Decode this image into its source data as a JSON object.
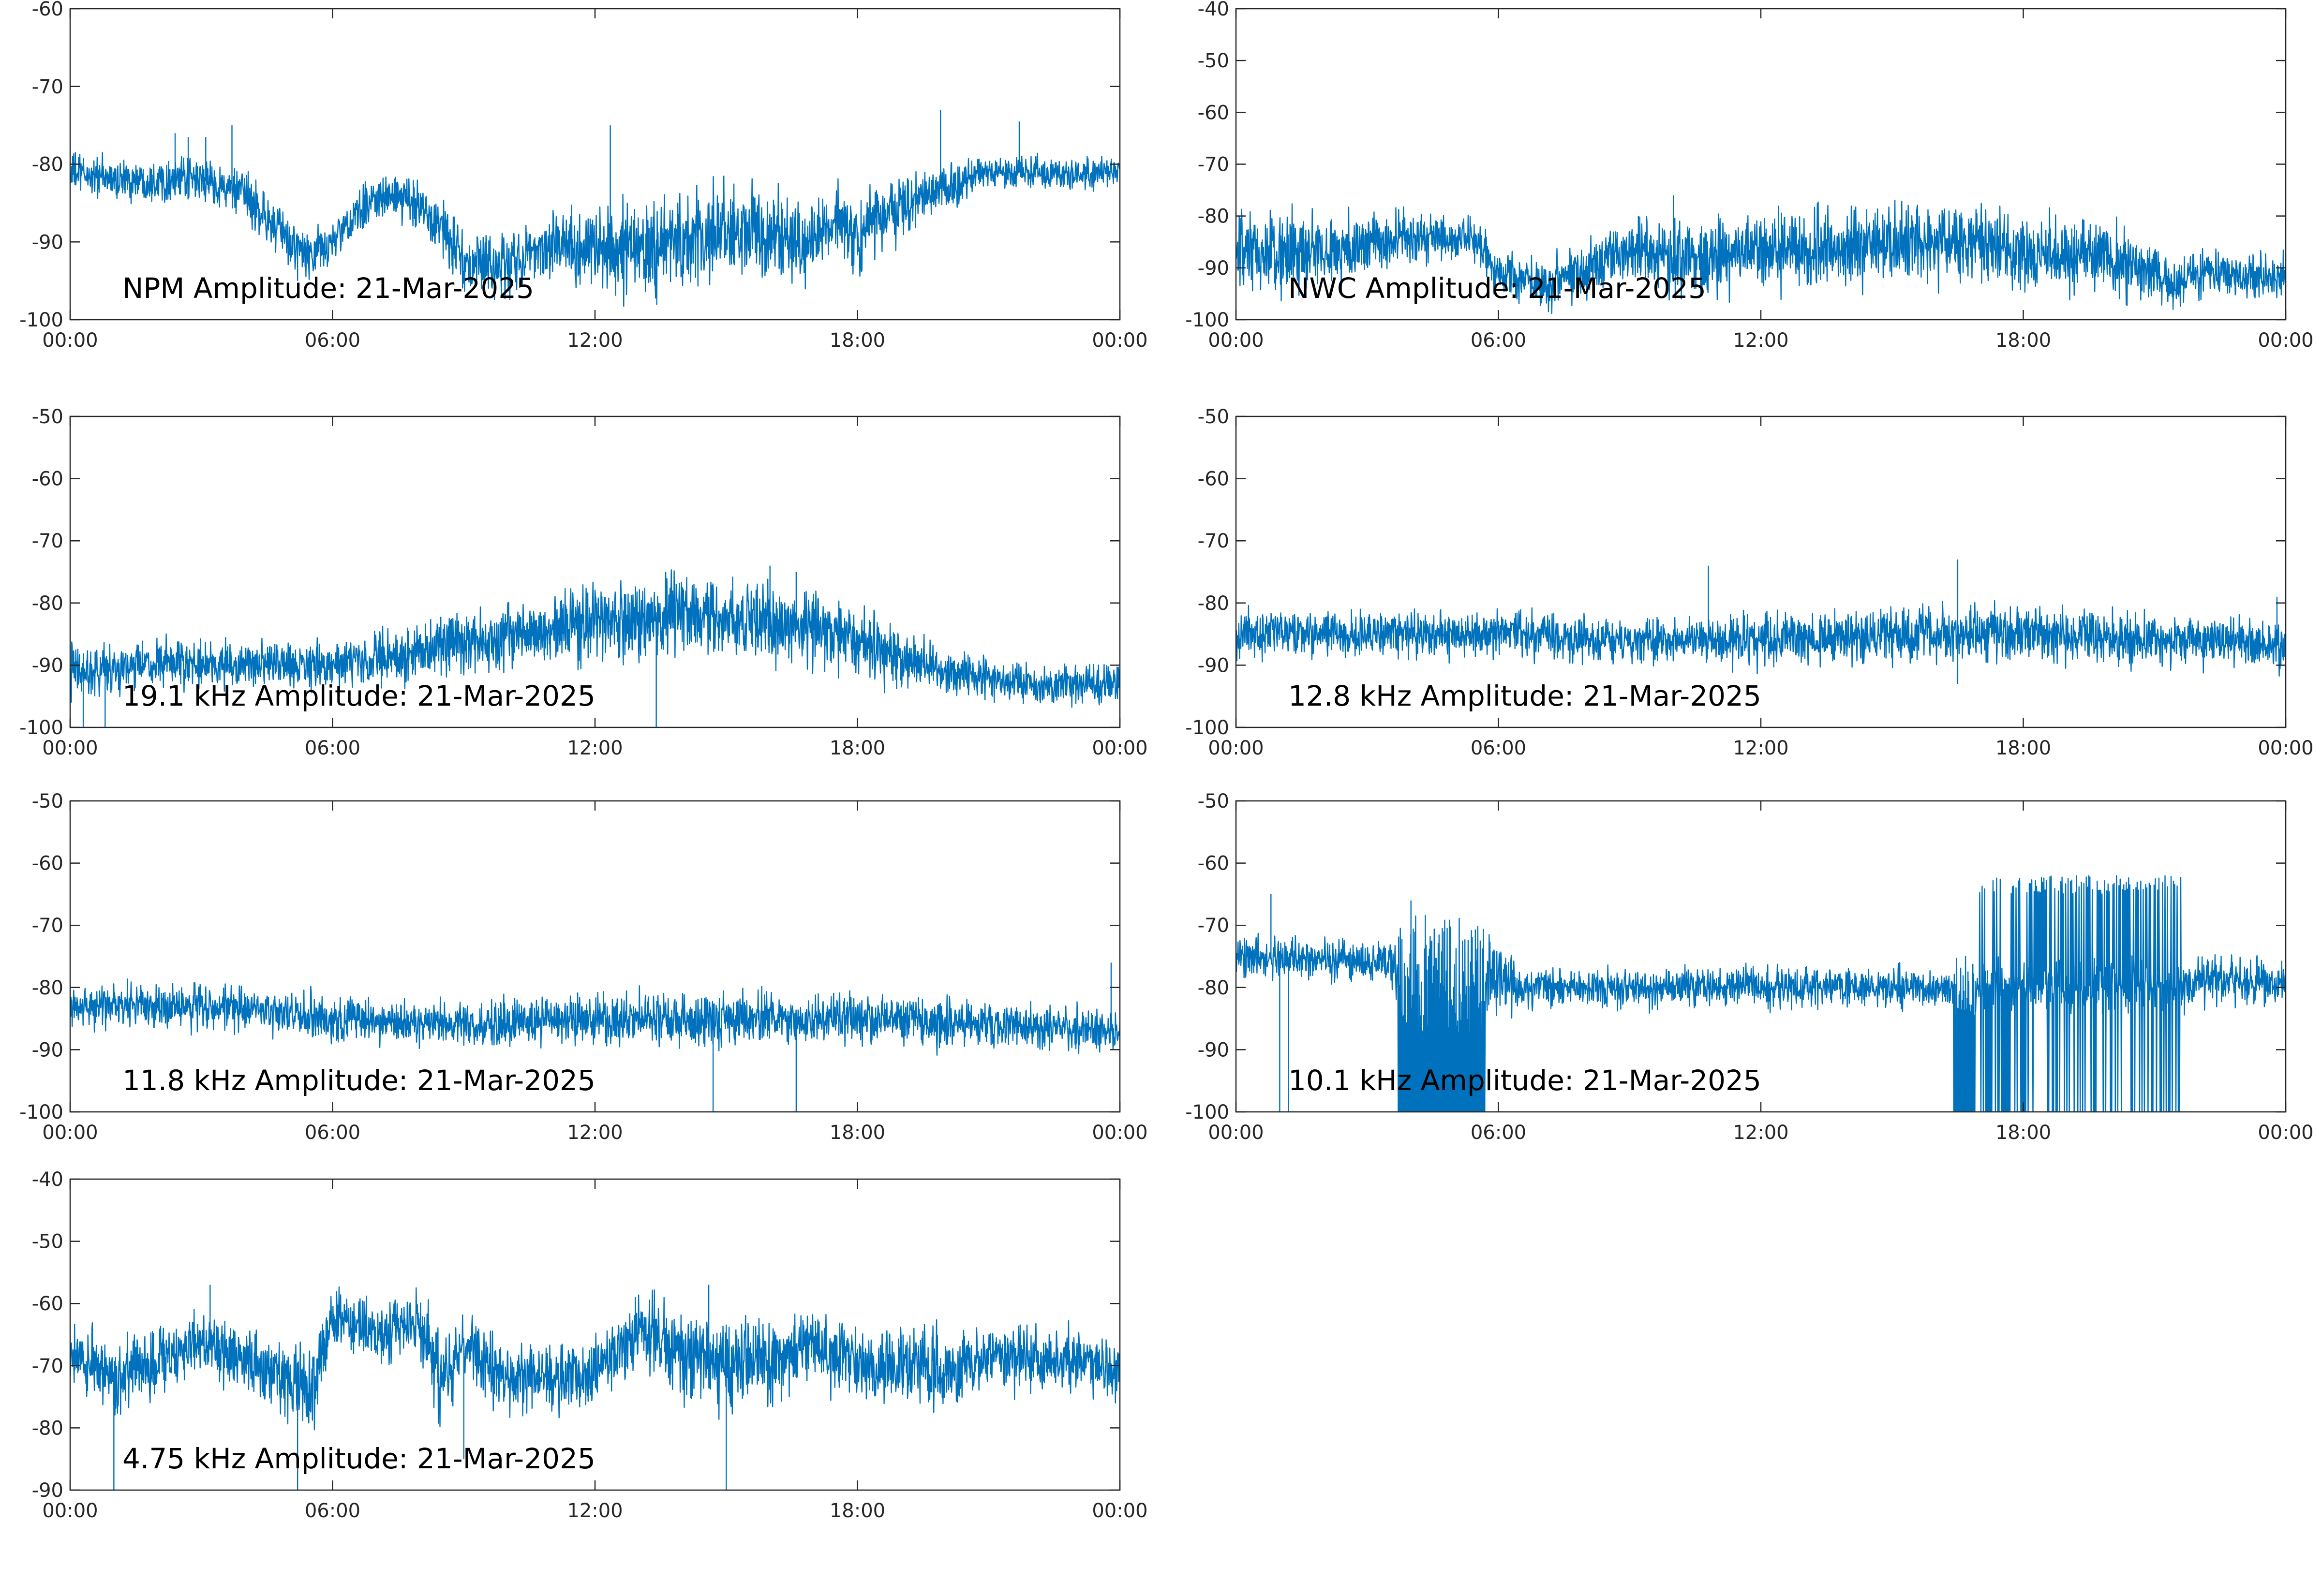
{
  "figure": {
    "background": "#ffffff",
    "line_color": "#0072BD",
    "axis_color": "#262626"
  },
  "chart_data": [
    {
      "type": "line",
      "title": "NPM Amplitude: 21-Mar-2025",
      "xlabel": "",
      "ylabel": "",
      "grid": false,
      "legend": "none",
      "xlim": [
        "00:00",
        "24:00"
      ],
      "x_ticks": [
        "00:00",
        "06:00",
        "12:00",
        "18:00",
        "00:00"
      ],
      "ylim": [
        -100,
        -60
      ],
      "y_ticks": [
        -100,
        -90,
        -80,
        -70,
        -60
      ],
      "series": [
        {
          "x_hours": [
            0,
            1,
            2,
            3,
            4,
            5,
            5.5,
            6,
            7,
            8,
            8.5,
            9,
            10,
            11,
            12,
            13,
            14,
            15,
            16,
            17,
            17.5,
            18,
            19,
            20,
            21,
            22,
            23,
            24
          ],
          "center": [
            -81,
            -82,
            -82,
            -82,
            -84,
            -90,
            -92,
            -90,
            -84,
            -85,
            -88,
            -93,
            -93,
            -90,
            -91,
            -91,
            -90,
            -89,
            -89,
            -90,
            -87,
            -90,
            -85,
            -83,
            -81,
            -81,
            -81,
            -81
          ],
          "spread": [
            2.5,
            2.5,
            2.5,
            2.5,
            3,
            3,
            3,
            3,
            2.5,
            3,
            4,
            4,
            4,
            4,
            5,
            6,
            6,
            6,
            6,
            5,
            4,
            5,
            4,
            3,
            2,
            1.8,
            1.8,
            1.8
          ],
          "spikes": [
            [
              2.4,
              -76
            ],
            [
              2.7,
              -76.5
            ],
            [
              3.1,
              -76.5
            ],
            [
              3.7,
              -75
            ],
            [
              5.2,
              -95
            ],
            [
              12.35,
              -75
            ],
            [
              19.9,
              -73
            ],
            [
              21.7,
              -74.5
            ]
          ]
        }
      ]
    },
    {
      "type": "line",
      "title": "NWC Amplitude: 21-Mar-2025",
      "xlabel": "",
      "ylabel": "",
      "grid": false,
      "legend": "none",
      "xlim": [
        "00:00",
        "24:00"
      ],
      "x_ticks": [
        "00:00",
        "06:00",
        "12:00",
        "18:00",
        "00:00"
      ],
      "ylim": [
        -100,
        -40
      ],
      "y_ticks": [
        -100,
        -90,
        -80,
        -70,
        -60,
        -50,
        -40
      ],
      "series": [
        {
          "x_hours": [
            0,
            2,
            4,
            5.5,
            6,
            7,
            8,
            9,
            10,
            12,
            14,
            16,
            18,
            20,
            21.5,
            22,
            24
          ],
          "center": [
            -88,
            -87,
            -84,
            -85,
            -91,
            -93,
            -90,
            -86,
            -88,
            -87,
            -86,
            -85,
            -87,
            -88,
            -93,
            -91,
            -92
          ],
          "spread": [
            8,
            7,
            5,
            4,
            4,
            5,
            5,
            6,
            7,
            7,
            7,
            7,
            7,
            7,
            5,
            4,
            4
          ],
          "spikes": [
            [
              9.2,
              -80
            ],
            [
              10,
              -76
            ],
            [
              12.4,
              -78
            ]
          ]
        }
      ]
    },
    {
      "type": "line",
      "title": "19.1 kHz Amplitude: 21-Mar-2025",
      "xlabel": "",
      "ylabel": "",
      "grid": false,
      "legend": "none",
      "xlim": [
        "00:00",
        "24:00"
      ],
      "x_ticks": [
        "00:00",
        "06:00",
        "12:00",
        "18:00",
        "00:00"
      ],
      "ylim": [
        -100,
        -50
      ],
      "y_ticks": [
        -100,
        -90,
        -80,
        -70,
        -60,
        -50
      ],
      "series": [
        {
          "x_hours": [
            0,
            2,
            4,
            6,
            8,
            10,
            12,
            14,
            16,
            18,
            19,
            20,
            22,
            24
          ],
          "center": [
            -91,
            -90,
            -90,
            -90,
            -88,
            -85,
            -83,
            -82,
            -83,
            -86,
            -89,
            -91,
            -93,
            -93
          ],
          "spread": [
            4,
            3.5,
            3.5,
            3.5,
            4.5,
            5,
            6,
            6,
            6,
            5,
            4.5,
            3.5,
            3,
            3
          ],
          "spikes": [
            [
              0.3,
              -100
            ],
            [
              0.8,
              -100
            ],
            [
              13.4,
              -100
            ],
            [
              16,
              -74
            ],
            [
              16.6,
              -75
            ]
          ]
        }
      ]
    },
    {
      "type": "line",
      "title": "12.8 kHz Amplitude: 21-Mar-2025",
      "xlabel": "",
      "ylabel": "",
      "grid": false,
      "legend": "none",
      "xlim": [
        "00:00",
        "24:00"
      ],
      "x_ticks": [
        "00:00",
        "06:00",
        "12:00",
        "18:00",
        "00:00"
      ],
      "ylim": [
        -100,
        -50
      ],
      "y_ticks": [
        -100,
        -90,
        -80,
        -70,
        -60,
        -50
      ],
      "series": [
        {
          "x_hours": [
            0,
            3,
            6,
            9,
            12,
            15,
            18,
            21,
            24
          ],
          "center": [
            -85,
            -85,
            -85,
            -86,
            -86,
            -85,
            -85,
            -86,
            -87
          ],
          "spread": [
            3.5,
            3.5,
            3.5,
            3.5,
            4,
            4,
            4,
            4,
            4
          ],
          "spikes": [
            [
              16.5,
              -73
            ],
            [
              16.5,
              -93
            ],
            [
              10.8,
              -74
            ],
            [
              23.8,
              -79
            ]
          ]
        }
      ]
    },
    {
      "type": "line",
      "title": "11.8 kHz Amplitude: 21-Mar-2025",
      "xlabel": "",
      "ylabel": "",
      "grid": false,
      "legend": "none",
      "xlim": [
        "00:00",
        "24:00"
      ],
      "x_ticks": [
        "00:00",
        "06:00",
        "12:00",
        "18:00",
        "00:00"
      ],
      "ylim": [
        -100,
        -50
      ],
      "y_ticks": [
        -100,
        -90,
        -80,
        -70,
        -60,
        -50
      ],
      "series": [
        {
          "x_hours": [
            0,
            3,
            6,
            9,
            12,
            15,
            18,
            21,
            24
          ],
          "center": [
            -83,
            -83,
            -85,
            -86,
            -85,
            -85,
            -85,
            -86,
            -87
          ],
          "spread": [
            3.5,
            3.5,
            3.5,
            3.5,
            4,
            4,
            4,
            3.5,
            3
          ],
          "spikes": [
            [
              14.7,
              -100
            ],
            [
              16.6,
              -100
            ],
            [
              23.8,
              -76
            ]
          ]
        }
      ]
    },
    {
      "type": "line",
      "title": "10.1 kHz Amplitude: 21-Mar-2025",
      "xlabel": "",
      "ylabel": "",
      "grid": false,
      "legend": "none",
      "xlim": [
        "00:00",
        "24:00"
      ],
      "x_ticks": [
        "00:00",
        "06:00",
        "12:00",
        "18:00",
        "00:00"
      ],
      "ylim": [
        -100,
        -50
      ],
      "y_ticks": [
        -100,
        -90,
        -80,
        -70,
        -60,
        -50
      ],
      "series": [
        {
          "x_hours": [
            0,
            3.5,
            4,
            6,
            6.5,
            9,
            12,
            15,
            16.5,
            17,
            21.5,
            22,
            24
          ],
          "center": [
            -75,
            -76,
            -78,
            -78,
            -80,
            -80,
            -80,
            -80,
            -80,
            -80,
            -80,
            -79,
            -79
          ],
          "spread": [
            3,
            3,
            6,
            6,
            3,
            3,
            3,
            3,
            3,
            4,
            4,
            3.5,
            3.5
          ],
          "dense_dropouts": [
            [
              3.7,
              5.7
            ],
            [
              16.4,
              16.9
            ]
          ],
          "spike_bursts": [
            [
              17,
              21.6
            ]
          ],
          "spikes": [
            [
              1,
              -100
            ],
            [
              1.2,
              -100
            ],
            [
              0.8,
              -65
            ],
            [
              4,
              -66
            ]
          ]
        }
      ]
    },
    {
      "type": "line",
      "title": "4.75 kHz Amplitude: 21-Mar-2025",
      "xlabel": "",
      "ylabel": "",
      "grid": false,
      "legend": "none",
      "xlim": [
        "00:00",
        "24:00"
      ],
      "x_ticks": [
        "00:00",
        "06:00",
        "12:00",
        "18:00",
        "00:00"
      ],
      "ylim": [
        -90,
        -40
      ],
      "y_ticks": [
        -90,
        -80,
        -70,
        -60,
        -50,
        -40
      ],
      "series": [
        {
          "x_hours": [
            0,
            1,
            2,
            3,
            4,
            5,
            5.5,
            6,
            7,
            8,
            8.5,
            9,
            10,
            11,
            12,
            13,
            14,
            15,
            16,
            17,
            18,
            19,
            20,
            21,
            22,
            23,
            24
          ],
          "center": [
            -68,
            -72,
            -69,
            -66,
            -70,
            -72,
            -74,
            -62,
            -65,
            -63,
            -72,
            -67,
            -72,
            -72,
            -71,
            -64,
            -68,
            -70,
            -69,
            -67,
            -70,
            -70,
            -71,
            -69,
            -69,
            -69,
            -70
          ],
          "spread": [
            4,
            6,
            5,
            4,
            5,
            6,
            7,
            4,
            5,
            5,
            7,
            6,
            5,
            5,
            5,
            6,
            7,
            7,
            7,
            6,
            6,
            6,
            6,
            5,
            5,
            5,
            5
          ],
          "spikes": [
            [
              1,
              -90
            ],
            [
              5.2,
              -90
            ],
            [
              9,
              -85
            ],
            [
              15,
              -90
            ],
            [
              3.2,
              -57
            ],
            [
              14.6,
              -57
            ]
          ]
        }
      ]
    }
  ]
}
